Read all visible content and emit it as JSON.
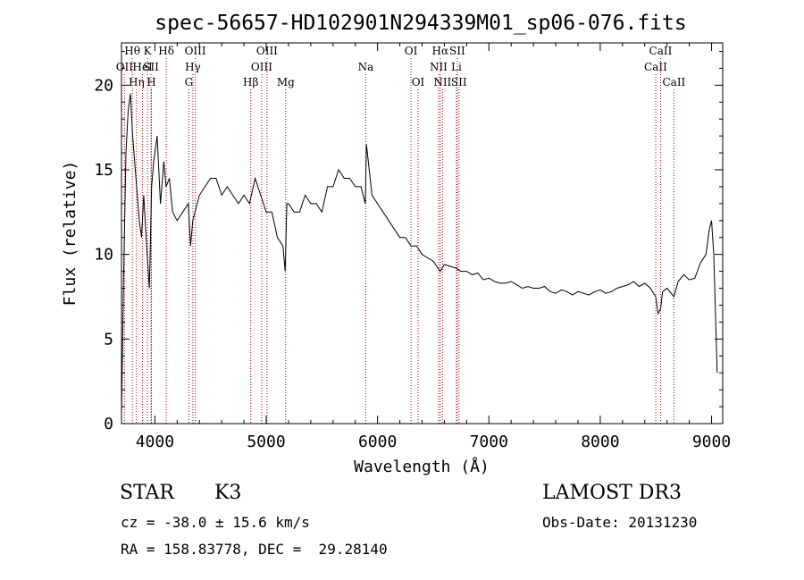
{
  "chart_data": {
    "type": "line",
    "title": "spec-56657-HD102901N294339M01_sp06-076.fits",
    "xlabel": "Wavelength (Å)",
    "ylabel": "Flux (relative)",
    "xlim": [
      3700,
      9100
    ],
    "ylim": [
      0,
      22.5
    ],
    "xticks": [
      4000,
      5000,
      6000,
      7000,
      8000,
      9000
    ],
    "yticks": [
      0,
      5,
      10,
      15,
      20
    ],
    "grid": false,
    "series": [
      {
        "name": "flux",
        "x": [
          3700,
          3720,
          3740,
          3760,
          3780,
          3800,
          3830,
          3860,
          3880,
          3900,
          3930,
          3950,
          3970,
          3990,
          4020,
          4050,
          4080,
          4100,
          4130,
          4160,
          4200,
          4250,
          4300,
          4320,
          4340,
          4360,
          4400,
          4450,
          4500,
          4550,
          4600,
          4650,
          4700,
          4750,
          4800,
          4850,
          4900,
          4950,
          5000,
          5050,
          5100,
          5150,
          5170,
          5185,
          5200,
          5250,
          5300,
          5350,
          5400,
          5450,
          5500,
          5550,
          5600,
          5650,
          5700,
          5750,
          5800,
          5850,
          5890,
          5900,
          5950,
          6000,
          6050,
          6100,
          6150,
          6200,
          6250,
          6300,
          6350,
          6400,
          6450,
          6500,
          6563,
          6600,
          6650,
          6700,
          6750,
          6800,
          6850,
          6900,
          6950,
          7000,
          7050,
          7100,
          7150,
          7200,
          7250,
          7300,
          7350,
          7400,
          7450,
          7500,
          7550,
          7600,
          7650,
          7700,
          7750,
          7800,
          7850,
          7900,
          7950,
          8000,
          8050,
          8100,
          8150,
          8200,
          8250,
          8300,
          8350,
          8400,
          8450,
          8498,
          8520,
          8542,
          8560,
          8600,
          8662,
          8700,
          8750,
          8800,
          8850,
          8900,
          8950,
          8980,
          9000,
          9020,
          9050
        ],
        "y": [
          0.5,
          9.0,
          16.0,
          18.5,
          19.5,
          17.0,
          14.5,
          12.0,
          11.0,
          13.5,
          10.0,
          8.0,
          14.0,
          15.5,
          17.0,
          13.0,
          15.5,
          14.0,
          14.5,
          12.5,
          12.0,
          12.5,
          13.0,
          10.5,
          12.0,
          12.5,
          13.5,
          14.0,
          14.5,
          14.5,
          13.5,
          14.0,
          13.5,
          13.0,
          13.5,
          13.0,
          14.5,
          13.5,
          12.5,
          12.5,
          11.0,
          10.5,
          9.0,
          13.0,
          13.0,
          12.5,
          12.5,
          13.5,
          13.0,
          13.0,
          12.5,
          14.0,
          14.0,
          15.0,
          14.5,
          14.5,
          14.0,
          14.0,
          13.0,
          16.5,
          13.5,
          13.0,
          12.5,
          12.0,
          11.5,
          11.0,
          11.0,
          10.5,
          10.5,
          10.0,
          9.8,
          9.6,
          9.0,
          9.4,
          9.3,
          9.2,
          9.0,
          9.0,
          8.8,
          8.9,
          8.5,
          8.6,
          8.4,
          8.3,
          8.3,
          8.4,
          8.2,
          8.0,
          8.1,
          8.0,
          8.0,
          8.1,
          7.8,
          7.7,
          7.9,
          7.8,
          7.6,
          7.8,
          7.7,
          7.6,
          7.8,
          7.9,
          7.7,
          7.8,
          8.0,
          8.1,
          8.2,
          8.4,
          8.1,
          8.3,
          8.0,
          7.5,
          6.5,
          6.8,
          7.8,
          8.0,
          7.5,
          8.4,
          8.8,
          8.5,
          8.6,
          9.5,
          10.0,
          11.5,
          12.0,
          10.0,
          3.0
        ]
      }
    ],
    "lines": [
      {
        "label": "OII",
        "x": 3727,
        "row": 2
      },
      {
        "label": "Hθ",
        "x": 3797,
        "row": 1
      },
      {
        "label": "Hη",
        "x": 3835,
        "row": 3
      },
      {
        "label": "HeI",
        "x": 3889,
        "row": 2
      },
      {
        "label": "K",
        "x": 3934,
        "row": 1
      },
      {
        "label": "SII",
        "x": 3965,
        "row": 2
      },
      {
        "label": "H",
        "x": 3969,
        "row": 3
      },
      {
        "label": "Hδ",
        "x": 4102,
        "row": 1
      },
      {
        "label": "G",
        "x": 4305,
        "row": 3
      },
      {
        "label": "Hγ",
        "x": 4341,
        "row": 2
      },
      {
        "label": "OIII",
        "x": 4363,
        "row": 1
      },
      {
        "label": "Hβ",
        "x": 4861,
        "row": 3
      },
      {
        "label": "OIII",
        "x": 4959,
        "row": 2
      },
      {
        "label": "OIII",
        "x": 5007,
        "row": 1
      },
      {
        "label": "Mg",
        "x": 5175,
        "row": 3
      },
      {
        "label": "Na",
        "x": 5894,
        "row": 2
      },
      {
        "label": "OI",
        "x": 6300,
        "row": 1
      },
      {
        "label": "OI",
        "x": 6364,
        "row": 3
      },
      {
        "label": "NII",
        "x": 6548,
        "row": 2
      },
      {
        "label": "Hα",
        "x": 6563,
        "row": 1
      },
      {
        "label": "NII",
        "x": 6583,
        "row": 3
      },
      {
        "label": "Li",
        "x": 6708,
        "row": 2
      },
      {
        "label": "SII",
        "x": 6716,
        "row": 1
      },
      {
        "label": "SII",
        "x": 6731,
        "row": 3
      },
      {
        "label": "CaII",
        "x": 8498,
        "row": 2
      },
      {
        "label": "CaII",
        "x": 8542,
        "row": 1
      },
      {
        "label": "CaII",
        "x": 8662,
        "row": 3
      }
    ]
  },
  "info": {
    "object_type": "STAR",
    "subclass": "K3",
    "survey": "LAMOST DR3",
    "redshift": "cz = -38.0 ± 15.6 km/s",
    "obs_date": "Obs-Date: 20131230",
    "coords": "RA = 158.83778, DEC =  29.28140"
  }
}
